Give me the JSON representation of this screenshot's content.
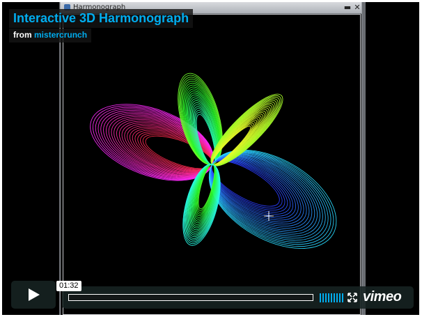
{
  "video": {
    "title": "Interactive 3D Harmonograph",
    "byline_from": "from",
    "author": "mistercrunch"
  },
  "app_window": {
    "title": "Harmonograph",
    "minimize_glyph": "▬",
    "close_glyph": "✕"
  },
  "player": {
    "timecode": "01:32",
    "logo": "vimeo",
    "played_fraction": 0,
    "loaded_fraction": 0.0
  },
  "icons": {
    "play": "play-icon",
    "volume": "volume-icon",
    "fullscreen": "fullscreen-icon",
    "cursor": "crosshair-cursor-icon"
  },
  "colors": {
    "brand_blue": "#00adef",
    "control_bg": "#172322"
  }
}
